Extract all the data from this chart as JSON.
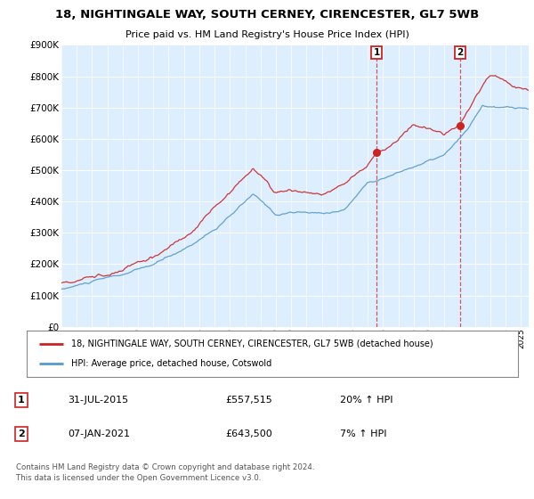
{
  "title_line1": "18, NIGHTINGALE WAY, SOUTH CERNEY, CIRENCESTER, GL7 5WB",
  "title_line2": "Price paid vs. HM Land Registry's House Price Index (HPI)",
  "background_color": "#ffffff",
  "plot_bg_color": "#ddeeff",
  "grid_color": "#ffffff",
  "red_line_color": "#cc2222",
  "blue_line_color": "#5599cc",
  "marker1_date_x": 2015.58,
  "marker2_date_x": 2021.02,
  "legend_entry1": "18, NIGHTINGALE WAY, SOUTH CERNEY, CIRENCESTER, GL7 5WB (detached house)",
  "legend_entry2": "HPI: Average price, detached house, Cotswold",
  "table_row1": [
    "1",
    "31-JUL-2015",
    "£557,515",
    "20% ↑ HPI"
  ],
  "table_row2": [
    "2",
    "07-JAN-2021",
    "£643,500",
    "7% ↑ HPI"
  ],
  "footer": "Contains HM Land Registry data © Crown copyright and database right 2024.\nThis data is licensed under the Open Government Licence v3.0.",
  "xmin": 1995.0,
  "xmax": 2025.5,
  "ymin": 0,
  "ymax": 900000,
  "yticks": [
    0,
    100000,
    200000,
    300000,
    400000,
    500000,
    600000,
    700000,
    800000,
    900000
  ],
  "sale1_y": 557515,
  "sale2_y": 643500
}
